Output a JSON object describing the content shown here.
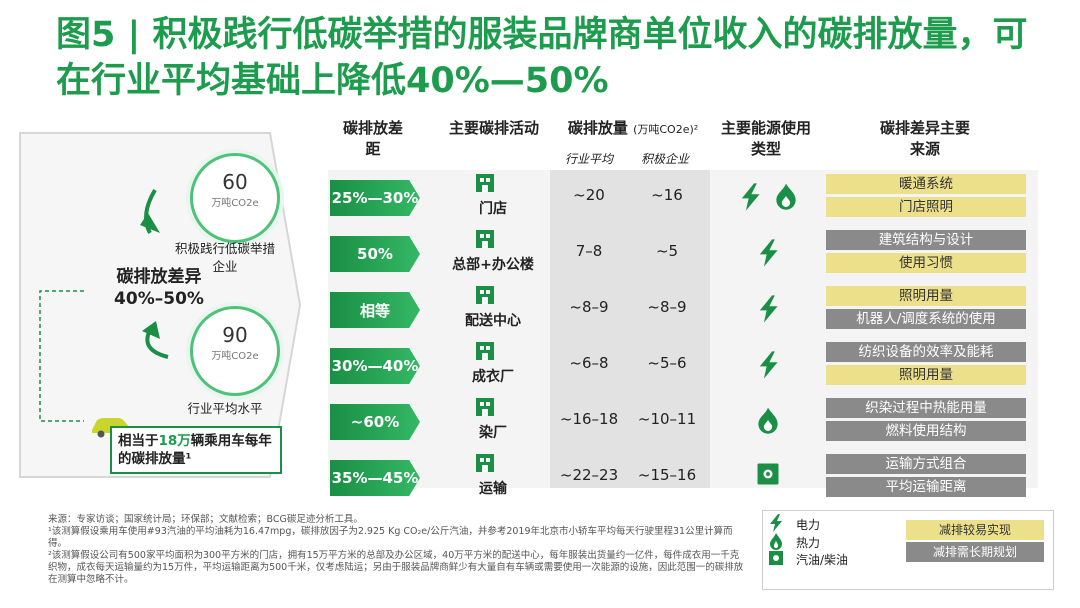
{
  "title": "图5 | 积极践行低碳举措的服装品牌商单位收入的碳排放量，可在行业平均基础上降低40%—50%",
  "headers": {
    "gap": "碳排放差距",
    "activity": "主要碳排活动",
    "emission": "碳排放量",
    "emission_unit": "(万吨CO2e)²",
    "industry_avg": "行业平均",
    "proactive": "积极企业",
    "energy": "主要能源使用类型",
    "source": "碳排差异主要来源"
  },
  "left": {
    "top_value": "60",
    "top_unit": "万吨CO2e",
    "top_label": "积极践行低碳举措企业",
    "diff_title": "碳排放差异",
    "diff_value": "40%–50%",
    "bottom_value": "90",
    "bottom_unit": "万吨CO2e",
    "bottom_label": "行业平均水平",
    "car_text_a": "相当于",
    "car_highlight": "18万",
    "car_text_b": "辆乘用车每年的碳排放量¹"
  },
  "rows": [
    {
      "gap": "25%—30%",
      "activity": "门店",
      "avg": "~20",
      "pro": "~16",
      "energy": [
        "bolt",
        "flame"
      ],
      "sources": [
        {
          "text": "暖通系统",
          "kind": "y"
        },
        {
          "text": "门店照明",
          "kind": "y"
        }
      ]
    },
    {
      "gap": "50%",
      "activity": "总部+办公楼",
      "avg": "7–8",
      "pro": "~5",
      "energy": [
        "bolt"
      ],
      "sources": [
        {
          "text": "建筑结构与设计",
          "kind": "g"
        },
        {
          "text": "使用习惯",
          "kind": "y"
        }
      ]
    },
    {
      "gap": "相等",
      "activity": "配送中心",
      "avg": "~8–9",
      "pro": "~8–9",
      "energy": [
        "bolt"
      ],
      "sources": [
        {
          "text": "照明用量",
          "kind": "y"
        },
        {
          "text": "机器人/调度系统的使用",
          "kind": "g"
        }
      ]
    },
    {
      "gap": "30%—40%",
      "activity": "成衣厂",
      "avg": "~6–8",
      "pro": "~5–6",
      "energy": [
        "bolt"
      ],
      "sources": [
        {
          "text": "纺织设备的效率及能耗",
          "kind": "g"
        },
        {
          "text": "照明用量",
          "kind": "y"
        }
      ]
    },
    {
      "gap": "~60%",
      "activity": "染厂",
      "avg": "~16–18",
      "pro": "~10–11",
      "energy": [
        "flame"
      ],
      "sources": [
        {
          "text": "织染过程中热能用量",
          "kind": "g"
        },
        {
          "text": "燃料使用结构",
          "kind": "g"
        }
      ]
    },
    {
      "gap": "35%—45%",
      "activity": "运输",
      "avg": "~22–23",
      "pro": "~15–16",
      "energy": [
        "fuel"
      ],
      "sources": [
        {
          "text": "运输方式组合",
          "kind": "g"
        },
        {
          "text": "平均运输距离",
          "kind": "g"
        }
      ]
    }
  ],
  "notes": [
    "来源：专家访谈；国家统计局；环保部；文献检索；BCG碳足迹分析工具。",
    "¹该测算假设乘用车使用#93汽油的平均油耗为16.47mpg，碳排放因子为2.925 Kg CO₂e/公斤汽油，并参考2019年北京市小轿车平均每天行驶里程31公里计算而得。",
    "²该测算假设公司有500家平均面积为300平方米的门店，拥有15万平方米的总部及办公区域，40万平方米的配送中心，每年服装出货量约一亿件，每件成衣用一千克织物，成衣每天运输量约为15万件，平均运输距离为500千米，仅考虑陆运；另由于服装品牌商鲜少有大量自有车辆或需要使用一次能源的设施，因此范围一的碳排放在测算中忽略不计。"
  ],
  "legend": {
    "power": "电力",
    "heat": "热力",
    "fuel": "汽油/柴油",
    "easy": "减排较易实现",
    "long": "减排需长期规划"
  },
  "colors": {
    "green": "#1e9c4e",
    "yellow": "#ece08a",
    "gray": "#8a8a8a"
  }
}
